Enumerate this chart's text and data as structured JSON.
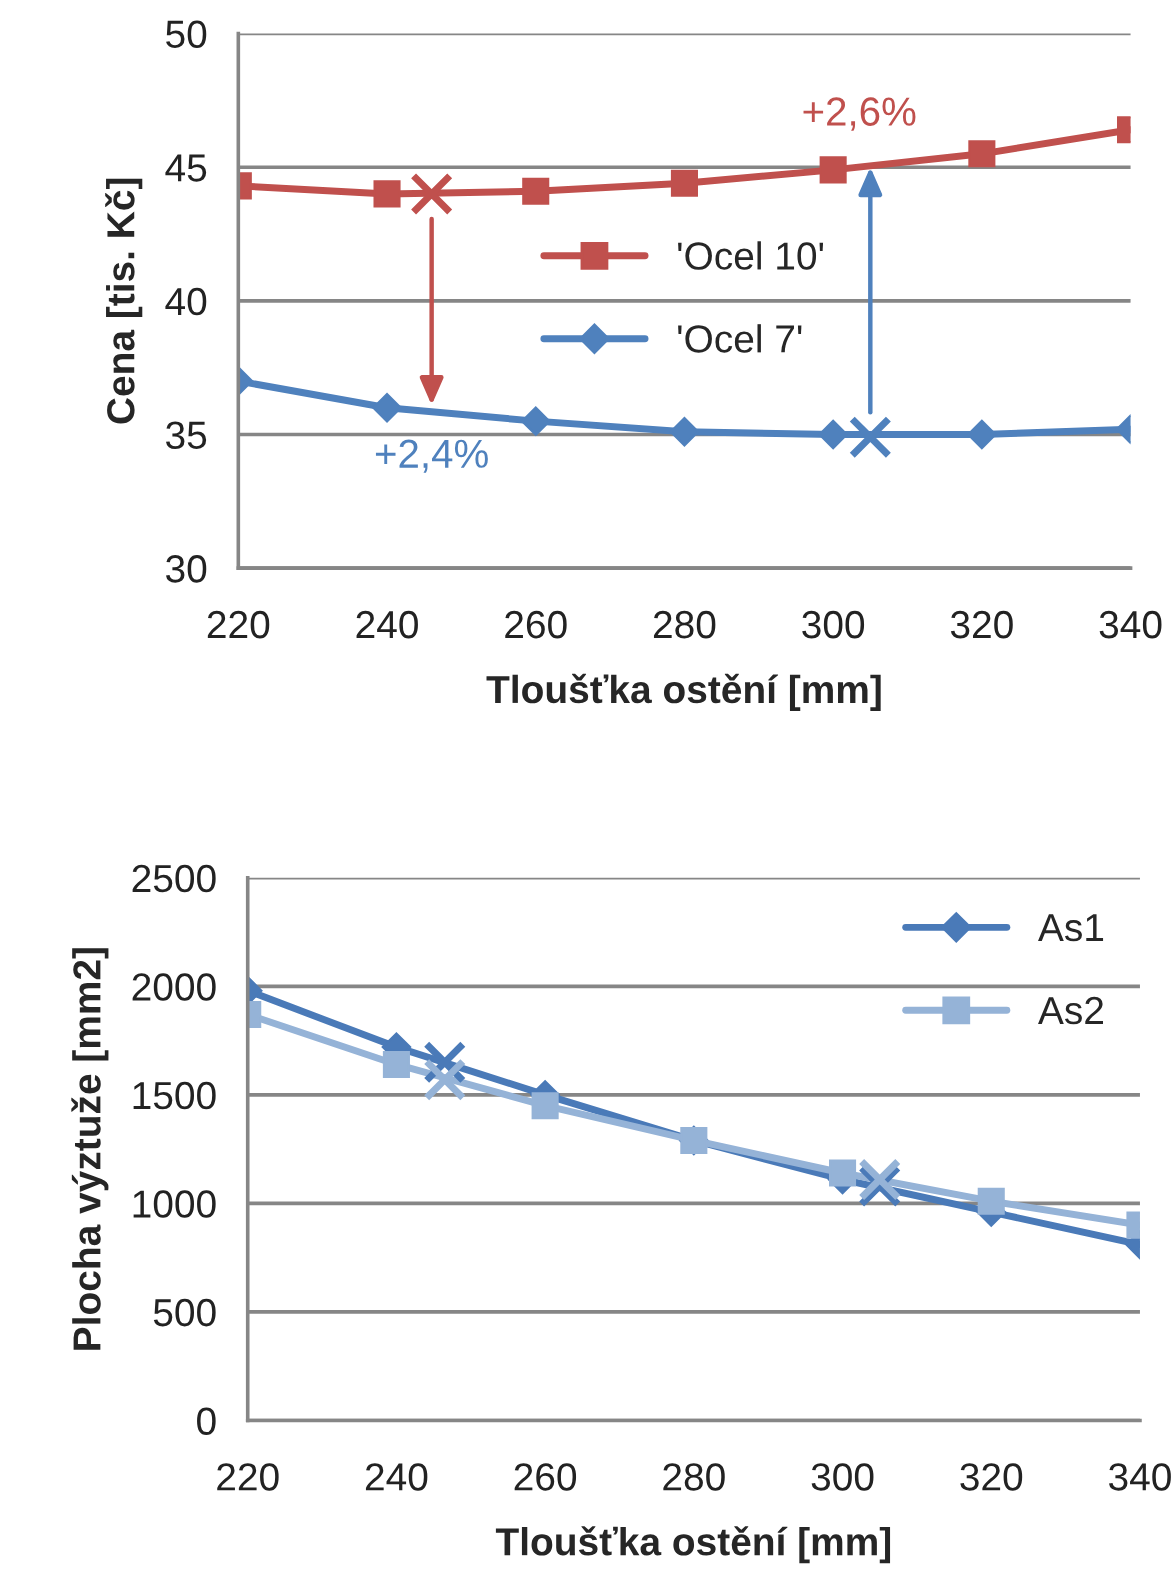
{
  "chart_data": [
    {
      "type": "line",
      "xlabel": "Tloušťka ostění [mm]",
      "ylabel": "Cena [tis. Kč]",
      "x": [
        220,
        240,
        260,
        280,
        300,
        320,
        340
      ],
      "series": [
        {
          "name": "'Ocel 10'",
          "color": "#c0504d",
          "marker": "square",
          "values": [
            44.3,
            44.0,
            44.1,
            44.4,
            44.9,
            45.5,
            46.4
          ]
        },
        {
          "name": "'Ocel 7'",
          "color": "#4f81bd",
          "marker": "diamond",
          "values": [
            37.0,
            36.0,
            35.5,
            35.1,
            35.0,
            35.0,
            35.2
          ]
        },
        {
          "type": "scatter",
          "color": "#c0504d",
          "marker": "cross",
          "x": [
            246
          ],
          "values": [
            44.0
          ]
        },
        {
          "type": "scatter",
          "color": "#4f81bd",
          "marker": "cross",
          "x": [
            305
          ],
          "values": [
            34.9
          ]
        }
      ],
      "annotations": [
        {
          "text": "+2,4%",
          "x": 246,
          "y": 36.1
        },
        {
          "text": "+2,6%",
          "x": 305,
          "y": 45.0
        }
      ],
      "xlim": [
        220,
        340
      ],
      "xticks": [
        220,
        240,
        260,
        280,
        300,
        320,
        340
      ],
      "ylim": [
        30,
        50
      ],
      "yticks": [
        30,
        35,
        40,
        45,
        50
      ],
      "grid": "y",
      "legend": "center"
    },
    {
      "type": "line",
      "xlabel": "Tloušťka ostění [mm]",
      "ylabel": "Plocha výztuže [mm2]",
      "x": [
        220,
        240,
        260,
        280,
        300,
        320,
        340
      ],
      "series": [
        {
          "name": "As1",
          "color": "#4a7ab8",
          "marker": "diamond",
          "values": [
            1980,
            1720,
            1500,
            1290,
            1110,
            960,
            810
          ]
        },
        {
          "name": "As2",
          "color": "#95b3d7",
          "marker": "square",
          "values": [
            1870,
            1640,
            1450,
            1290,
            1140,
            1010,
            900
          ]
        },
        {
          "type": "scatter",
          "color": "#4a7ab8",
          "marker": "cross",
          "x": [
            246.5,
            305
          ],
          "values": [
            1650,
            1080
          ]
        },
        {
          "type": "scatter",
          "color": "#95b3d7",
          "marker": "cross",
          "x": [
            246.5,
            305
          ],
          "values": [
            1570,
            1110
          ]
        }
      ],
      "xlim": [
        220,
        340
      ],
      "xticks": [
        220,
        240,
        260,
        280,
        300,
        320,
        340
      ],
      "ylim": [
        0,
        2500
      ],
      "yticks": [
        0,
        500,
        1000,
        1500,
        2000,
        2500
      ],
      "grid": "y",
      "legend": "top right"
    }
  ]
}
